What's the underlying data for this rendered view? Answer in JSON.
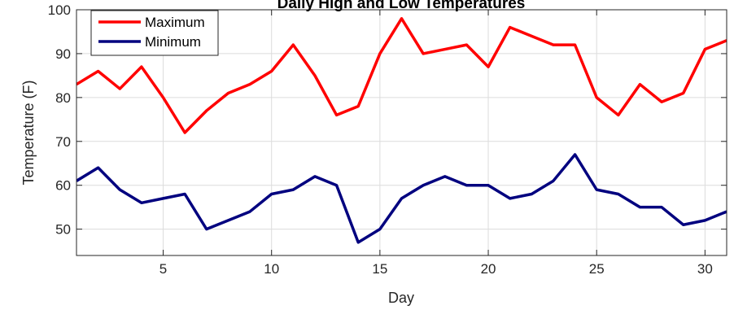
{
  "chart_data": {
    "type": "line",
    "title": "Daily High and Low Temperatures",
    "xlabel": "Day",
    "ylabel": "Temperature (F)",
    "xlim": [
      1,
      31
    ],
    "ylim": [
      44,
      100
    ],
    "xticks": [
      5,
      10,
      15,
      20,
      25,
      30
    ],
    "yticks": [
      50,
      60,
      70,
      80,
      90,
      100
    ],
    "grid": true,
    "legend_position": "top-left",
    "x": [
      1,
      2,
      3,
      4,
      5,
      6,
      7,
      8,
      9,
      10,
      11,
      12,
      13,
      14,
      15,
      16,
      17,
      18,
      19,
      20,
      21,
      22,
      23,
      24,
      25,
      26,
      27,
      28,
      29,
      30,
      31
    ],
    "series": [
      {
        "name": "Maximum",
        "color": "#ff0000",
        "values": [
          83,
          86,
          82,
          87,
          80,
          72,
          77,
          81,
          83,
          86,
          92,
          85,
          76,
          78,
          90,
          98,
          90,
          91,
          92,
          87,
          96,
          94,
          92,
          92,
          80,
          76,
          83,
          79,
          81,
          91,
          93
        ]
      },
      {
        "name": "Minimum",
        "color": "#00007f",
        "values": [
          61,
          64,
          59,
          56,
          57,
          58,
          50,
          52,
          54,
          58,
          59,
          62,
          60,
          47,
          50,
          57,
          60,
          62,
          60,
          60,
          57,
          58,
          61,
          67,
          59,
          58,
          55,
          55,
          51,
          52,
          54
        ]
      }
    ]
  }
}
